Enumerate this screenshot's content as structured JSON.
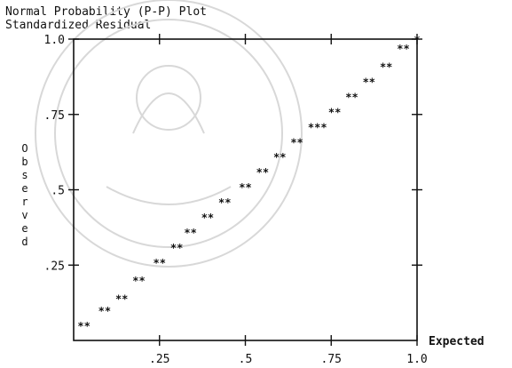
{
  "chart_data": {
    "type": "scatter",
    "title": "Normal Probability (P-P) Plot",
    "subtitle": "Standardized Residual",
    "xlabel": "Expected",
    "ylabel": "Observed",
    "xlim": [
      0,
      1
    ],
    "ylim": [
      0,
      1
    ],
    "x_tick_labels": [
      ".25",
      ".5",
      ".75",
      "1.0"
    ],
    "y_tick_labels": [
      "1.0",
      ".75",
      ".5",
      ".25"
    ],
    "marker": "*",
    "grid": false,
    "points": [
      {
        "x": 0.03,
        "y": 0.05,
        "label": "**"
      },
      {
        "x": 0.09,
        "y": 0.1,
        "label": "**"
      },
      {
        "x": 0.14,
        "y": 0.14,
        "label": "**"
      },
      {
        "x": 0.19,
        "y": 0.2,
        "label": "**"
      },
      {
        "x": 0.25,
        "y": 0.26,
        "label": "**"
      },
      {
        "x": 0.3,
        "y": 0.31,
        "label": "**"
      },
      {
        "x": 0.34,
        "y": 0.36,
        "label": "**"
      },
      {
        "x": 0.39,
        "y": 0.41,
        "label": "**"
      },
      {
        "x": 0.44,
        "y": 0.46,
        "label": "**"
      },
      {
        "x": 0.5,
        "y": 0.51,
        "label": "**"
      },
      {
        "x": 0.55,
        "y": 0.56,
        "label": "**"
      },
      {
        "x": 0.6,
        "y": 0.61,
        "label": "**"
      },
      {
        "x": 0.65,
        "y": 0.66,
        "label": "**"
      },
      {
        "x": 0.71,
        "y": 0.71,
        "label": "***"
      },
      {
        "x": 0.76,
        "y": 0.76,
        "label": "**"
      },
      {
        "x": 0.81,
        "y": 0.81,
        "label": "**"
      },
      {
        "x": 0.86,
        "y": 0.86,
        "label": "**"
      },
      {
        "x": 0.91,
        "y": 0.91,
        "label": "**"
      },
      {
        "x": 0.96,
        "y": 0.97,
        "label": "**"
      },
      {
        "x": 1.0,
        "y": 1.0,
        "label": "*"
      }
    ]
  }
}
